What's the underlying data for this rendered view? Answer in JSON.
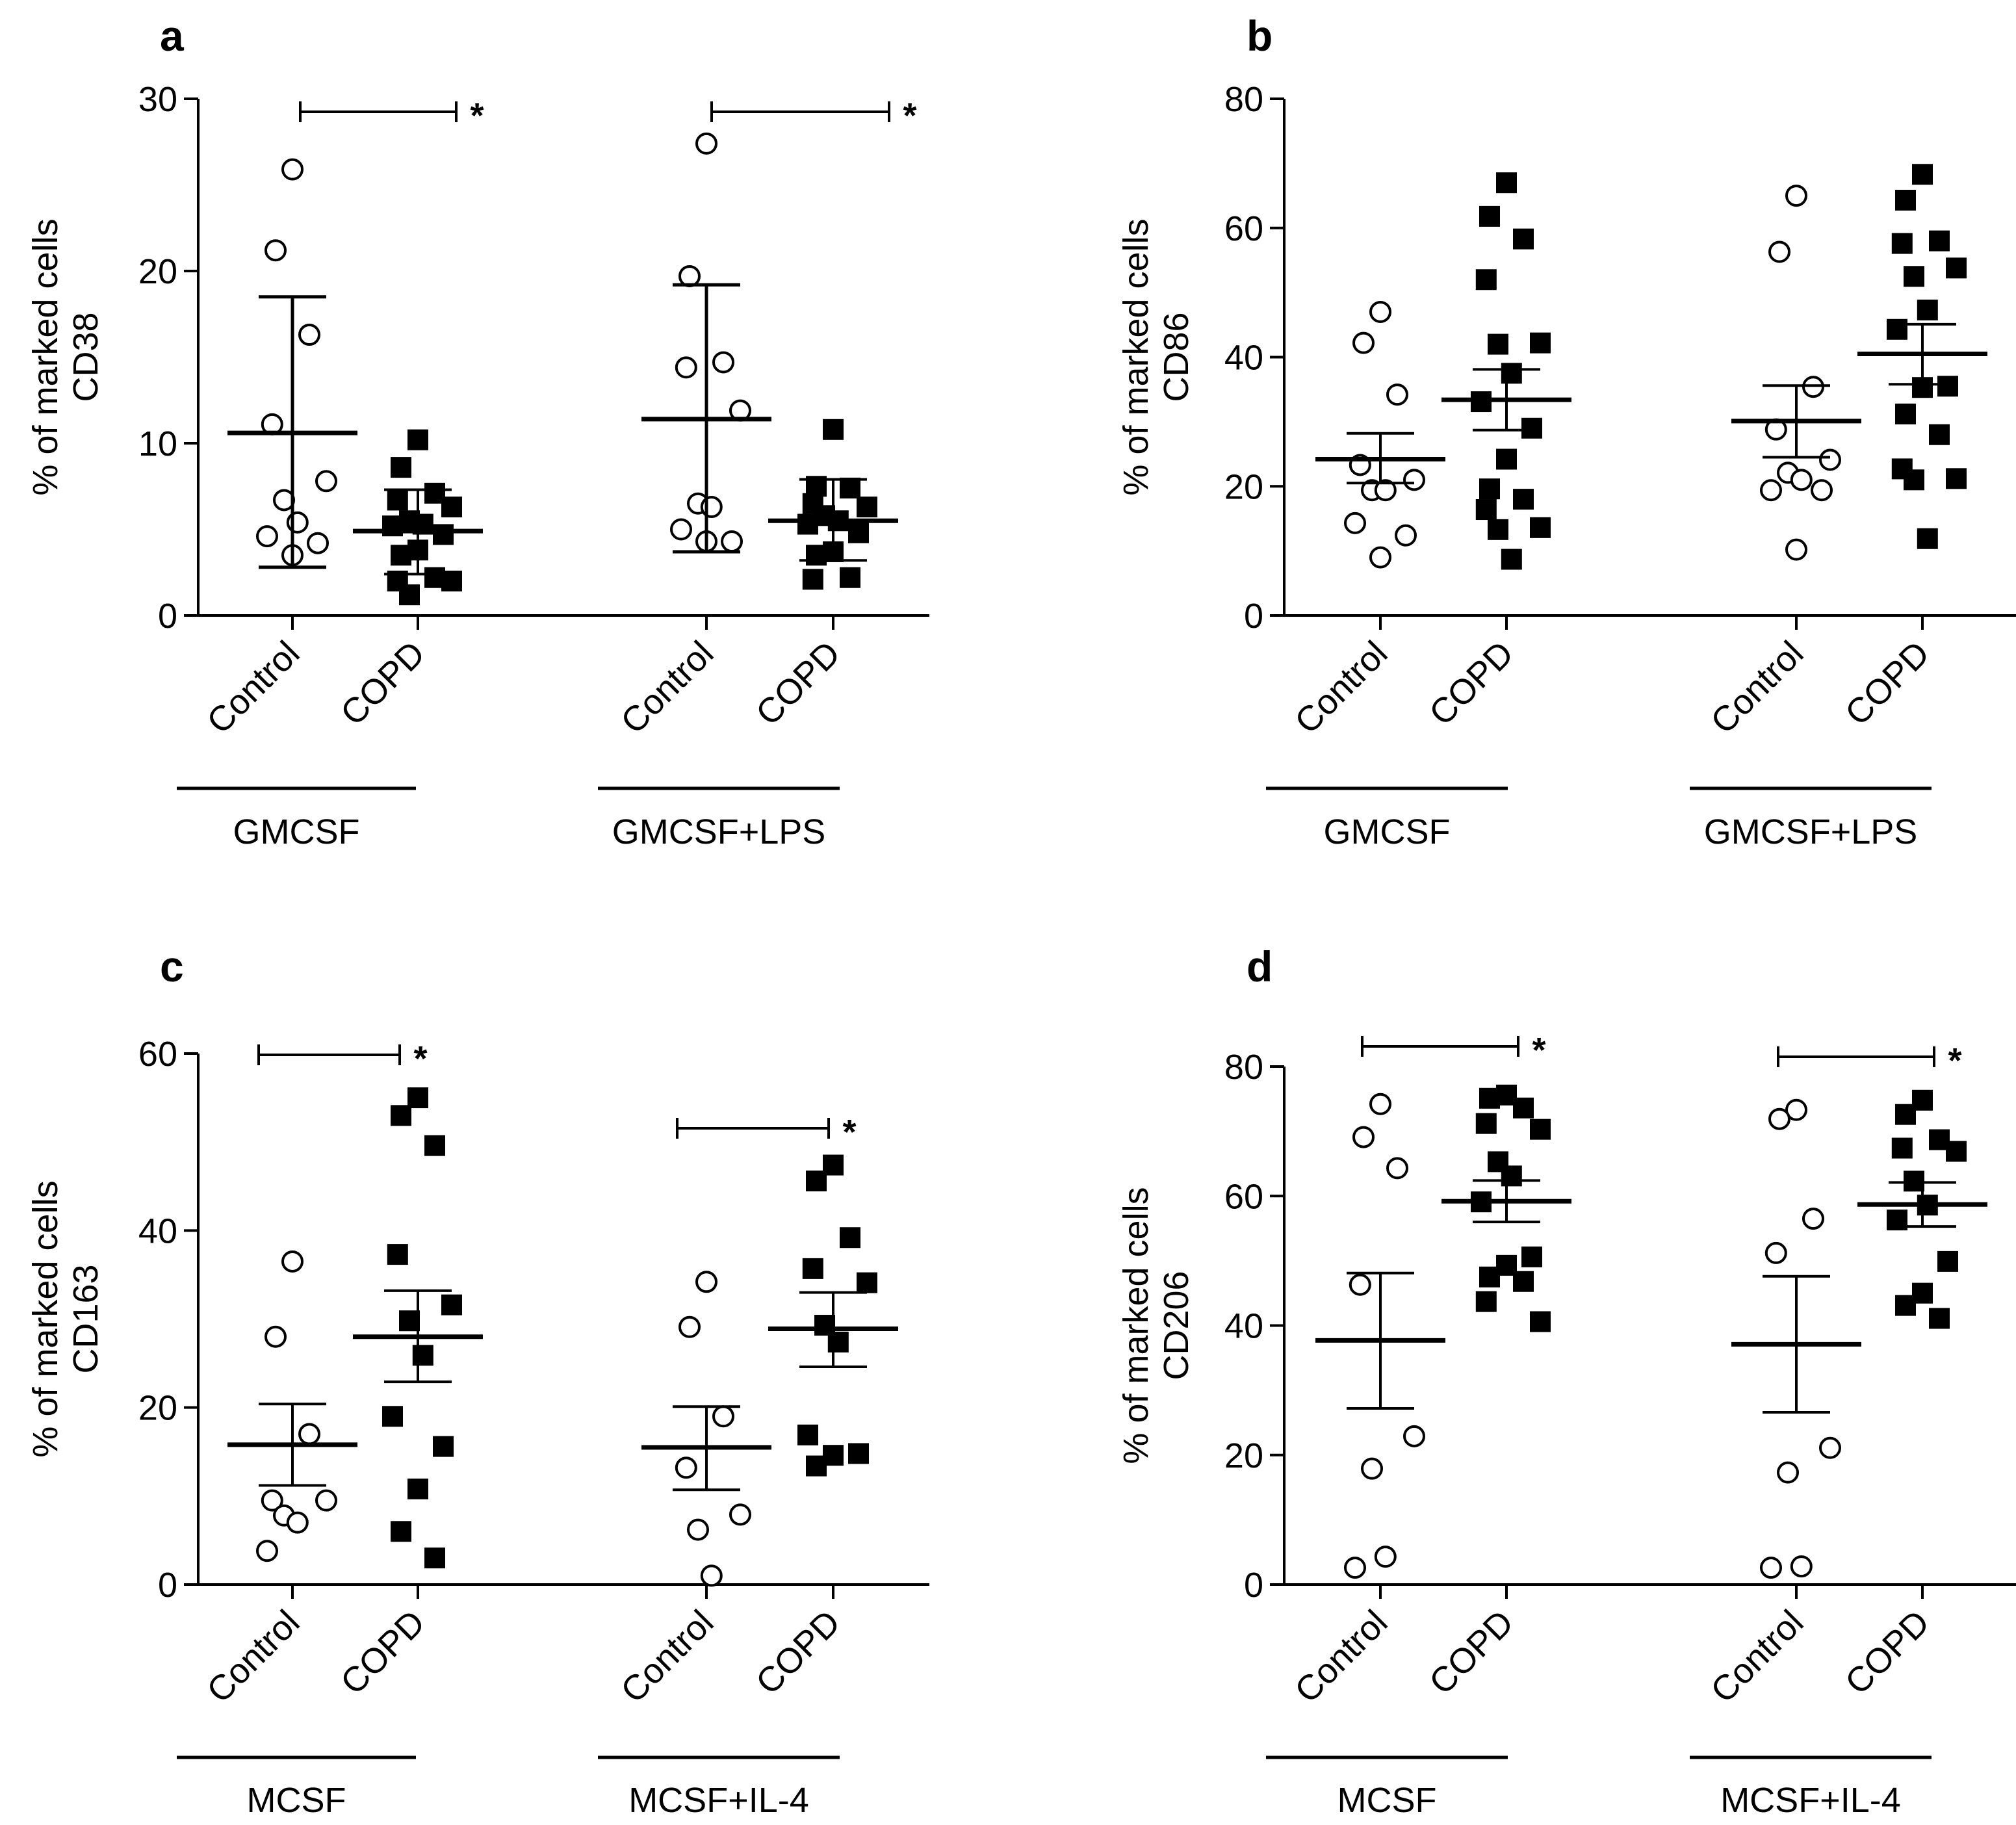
{
  "chart_data": [
    {
      "type": "scatter",
      "panel": "a",
      "ylabel_line1": "% of marked cells",
      "ylabel_line2": "CD38",
      "ylim": [
        0,
        30
      ],
      "yticks": [
        0,
        10,
        20,
        30
      ],
      "groups": [
        {
          "label": "GMCSF",
          "categories": [
            {
              "name": "Control",
              "marker": "open-circle",
              "mean": 10.6,
              "err_low": 2.8,
              "err_high": 18.5,
              "thick_err": true,
              "values": [
                25.9,
                21.2,
                16.3,
                11.1,
                7.8,
                6.7,
                5.4,
                4.6,
                4.2,
                3.5
              ]
            },
            {
              "name": "COPD",
              "marker": "filled-square",
              "mean": 4.9,
              "err_low": 2.4,
              "err_high": 7.3,
              "thick_err": false,
              "values": [
                10.2,
                8.6,
                7.1,
                6.7,
                6.3,
                5.5,
                5.3,
                5.2,
                4.7,
                3.8,
                3.5,
                2.2,
                2.0,
                2.0,
                1.2
              ]
            }
          ],
          "significance": "*"
        },
        {
          "label": "GMCSF+LPS",
          "categories": [
            {
              "name": "Control",
              "marker": "open-circle",
              "mean": 11.4,
              "err_low": 3.7,
              "err_high": 19.2,
              "thick_err": true,
              "values": [
                27.4,
                19.7,
                14.7,
                14.4,
                11.9,
                6.5,
                6.3,
                5.0,
                4.3,
                4.3
              ]
            },
            {
              "name": "COPD",
              "marker": "filled-square",
              "mean": 5.5,
              "err_low": 3.2,
              "err_high": 7.9,
              "thick_err": false,
              "values": [
                10.8,
                7.5,
                7.4,
                6.5,
                6.3,
                5.8,
                5.5,
                5.3,
                4.8,
                3.7,
                3.5,
                2.2,
                2.1
              ]
            }
          ],
          "significance": "*"
        }
      ]
    },
    {
      "type": "scatter",
      "panel": "b",
      "ylabel_line1": "% of marked cells",
      "ylabel_line2": "CD86",
      "ylim": [
        0,
        80
      ],
      "yticks": [
        0,
        20,
        40,
        60,
        80
      ],
      "groups": [
        {
          "label": "GMCSF",
          "categories": [
            {
              "name": "Control",
              "marker": "open-circle",
              "mean": 24.2,
              "err_low": 20.5,
              "err_high": 28.2,
              "thick_err": false,
              "values": [
                47.0,
                42.2,
                34.2,
                23.3,
                21.0,
                19.4,
                19.4,
                14.3,
                12.4,
                9.0
              ]
            },
            {
              "name": "COPD",
              "marker": "filled-square",
              "mean": 33.4,
              "err_low": 28.7,
              "err_high": 38.1,
              "thick_err": false,
              "values": [
                67.0,
                61.8,
                58.3,
                52.0,
                42.2,
                42.0,
                37.5,
                33.1,
                29.0,
                24.2,
                19.6,
                18.0,
                16.4,
                13.6,
                13.3,
                8.7
              ]
            }
          ],
          "significance": ""
        },
        {
          "label": "GMCSF+LPS",
          "categories": [
            {
              "name": "Control",
              "marker": "open-circle",
              "mean": 30.1,
              "err_low": 24.5,
              "err_high": 35.6,
              "thick_err": false,
              "values": [
                65.0,
                56.3,
                35.4,
                28.8,
                24.1,
                22.1,
                21.0,
                19.4,
                19.4,
                10.2
              ]
            },
            {
              "name": "COPD",
              "marker": "filled-square",
              "mean": 40.5,
              "err_low": 35.8,
              "err_high": 45.1,
              "thick_err": false,
              "values": [
                68.3,
                64.3,
                58.0,
                57.6,
                53.8,
                52.5,
                47.3,
                44.3,
                35.5,
                35.3,
                31.2,
                28.0,
                22.7,
                21.2,
                21.0,
                11.9
              ]
            }
          ],
          "significance": ""
        }
      ]
    },
    {
      "type": "scatter",
      "panel": "c",
      "ylabel_line1": "% of marked cells",
      "ylabel_line2": "CD163",
      "ylim": [
        0,
        60
      ],
      "yticks": [
        0,
        20,
        40,
        60
      ],
      "groups": [
        {
          "label": "MCSF",
          "categories": [
            {
              "name": "Control",
              "marker": "open-circle",
              "mean": 15.8,
              "err_low": 11.2,
              "err_high": 20.4,
              "thick_err": false,
              "values": [
                36.5,
                28.0,
                17.0,
                9.5,
                9.5,
                7.8,
                7.0,
                3.8
              ]
            },
            {
              "name": "COPD",
              "marker": "filled-square",
              "mean": 28.0,
              "err_low": 22.9,
              "err_high": 33.2,
              "thick_err": false,
              "values": [
                55.0,
                53.0,
                49.6,
                37.3,
                31.6,
                29.8,
                25.9,
                19.0,
                15.6,
                10.8,
                6.0,
                3.0
              ]
            }
          ],
          "significance": "*"
        },
        {
          "label": "MCSF+IL-4",
          "categories": [
            {
              "name": "Control",
              "marker": "open-circle",
              "mean": 15.5,
              "err_low": 10.7,
              "err_high": 20.1,
              "thick_err": false,
              "values": [
                34.2,
                29.1,
                19.0,
                13.2,
                7.9,
                6.2,
                1.0
              ]
            },
            {
              "name": "COPD",
              "marker": "filled-square",
              "mean": 28.9,
              "err_low": 24.6,
              "err_high": 33.0,
              "thick_err": false,
              "values": [
                47.4,
                45.6,
                39.2,
                35.7,
                34.1,
                29.3,
                27.4,
                16.9,
                14.8,
                14.6,
                13.4
              ]
            }
          ],
          "significance": "*"
        }
      ]
    },
    {
      "type": "scatter",
      "panel": "d",
      "ylabel_line1": "% of marked cells",
      "ylabel_line2": "CD206",
      "ylim": [
        0,
        80
      ],
      "yticks": [
        0,
        20,
        40,
        60,
        80
      ],
      "groups": [
        {
          "label": "MCSF",
          "categories": [
            {
              "name": "Control",
              "marker": "open-circle",
              "mean": 37.7,
              "err_low": 27.2,
              "err_high": 48.1,
              "thick_err": false,
              "values": [
                74.2,
                69.1,
                64.3,
                46.3,
                22.9,
                17.9,
                4.3,
                2.6
              ]
            },
            {
              "name": "COPD",
              "marker": "filled-square",
              "mean": 59.2,
              "err_low": 56.0,
              "err_high": 62.4,
              "thick_err": false,
              "values": [
                75.6,
                75.1,
                73.6,
                71.2,
                70.3,
                65.3,
                63.1,
                59.1,
                50.6,
                49.3,
                47.5,
                46.8,
                43.7,
                40.6
              ]
            }
          ],
          "significance": "*"
        },
        {
          "label": "MCSF+IL-4",
          "categories": [
            {
              "name": "Control",
              "marker": "open-circle",
              "mean": 37.1,
              "err_low": 26.6,
              "err_high": 47.6,
              "thick_err": false,
              "values": [
                73.3,
                71.9,
                56.5,
                51.2,
                21.1,
                17.3,
                2.8,
                2.6
              ]
            },
            {
              "name": "COPD",
              "marker": "filled-square",
              "mean": 58.7,
              "err_low": 55.3,
              "err_high": 62.1,
              "thick_err": false,
              "values": [
                74.8,
                72.6,
                68.7,
                67.4,
                66.9,
                62.3,
                58.6,
                56.3,
                49.9,
                45.0,
                43.1,
                41.1
              ]
            }
          ],
          "significance": "*"
        }
      ]
    }
  ]
}
